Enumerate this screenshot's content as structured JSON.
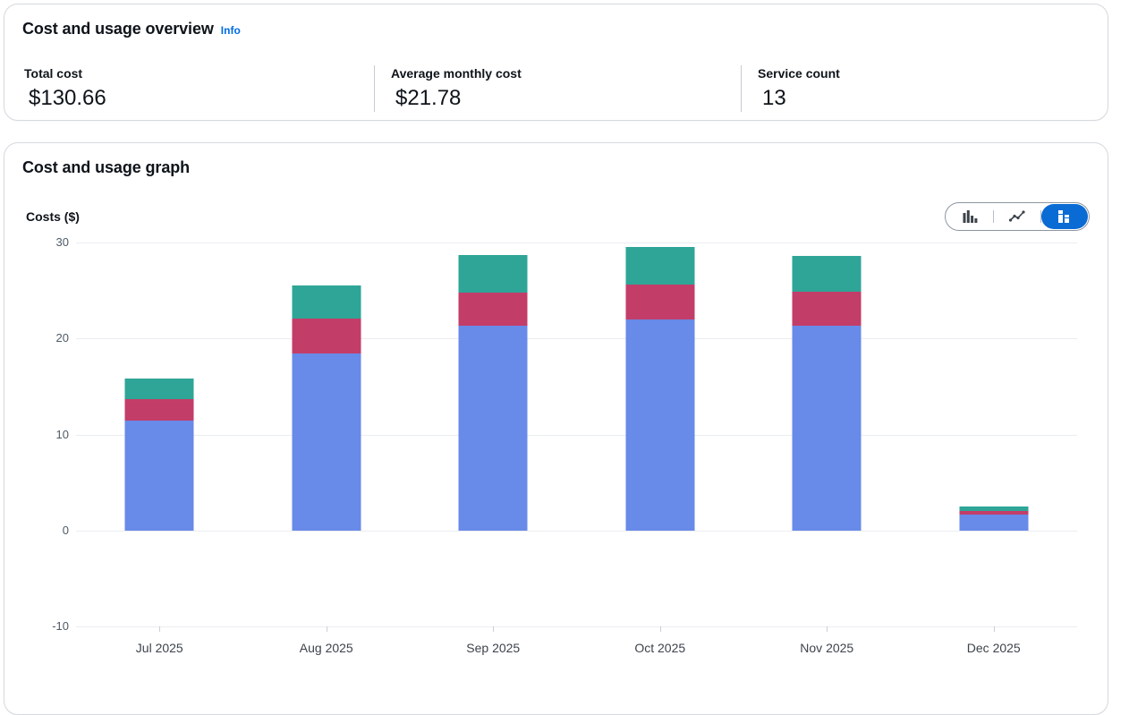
{
  "overview_card": {
    "title": "Cost and usage overview",
    "info_link": "Info",
    "metrics": [
      {
        "label": "Total cost",
        "value": "$130.66"
      },
      {
        "label": "Average monthly cost",
        "value": "$21.78"
      },
      {
        "label": "Service count",
        "value": "13"
      }
    ]
  },
  "graph_card": {
    "title": "Cost and usage graph",
    "chart_type_options": [
      {
        "name": "bar-chart",
        "selected": false
      },
      {
        "name": "line-chart",
        "selected": false
      },
      {
        "name": "stacked-bar-chart",
        "selected": true
      }
    ]
  },
  "chart_data": {
    "type": "bar",
    "stacked": true,
    "title": "Cost and usage graph",
    "ylabel": "Costs ($)",
    "xlabel": "",
    "categories": [
      "Jul 2025",
      "Aug 2025",
      "Sep 2025",
      "Oct 2025",
      "Nov 2025",
      "Dec 2025"
    ],
    "series": [
      {
        "name": "segment-blue",
        "color": "#688AE8",
        "values": [
          11.4,
          18.45,
          21.3,
          22.0,
          21.3,
          1.66
        ]
      },
      {
        "name": "segment-red",
        "color": "#C33D69",
        "values": [
          2.3,
          3.65,
          3.45,
          3.6,
          3.55,
          0.37
        ]
      },
      {
        "name": "segment-teal",
        "color": "#2EA597",
        "values": [
          2.15,
          3.45,
          3.9,
          3.95,
          3.75,
          0.43
        ]
      }
    ],
    "totals": [
      15.85,
      25.55,
      28.65,
      29.55,
      28.6,
      2.46
    ],
    "y_ticks": [
      30,
      20,
      10,
      0,
      -10
    ],
    "ylim": [
      -10,
      30
    ],
    "grid": true,
    "legend_position": "not-visible"
  },
  "colors": {
    "accent_blue": "#0b6bd4",
    "link_blue": "#006ce0",
    "text_primary": "#0f141a",
    "axis_text": "#4e5a68",
    "gridline": "#eaedf0",
    "card_border": "#d5d9de",
    "metric_divider": "#c6cbd2"
  }
}
